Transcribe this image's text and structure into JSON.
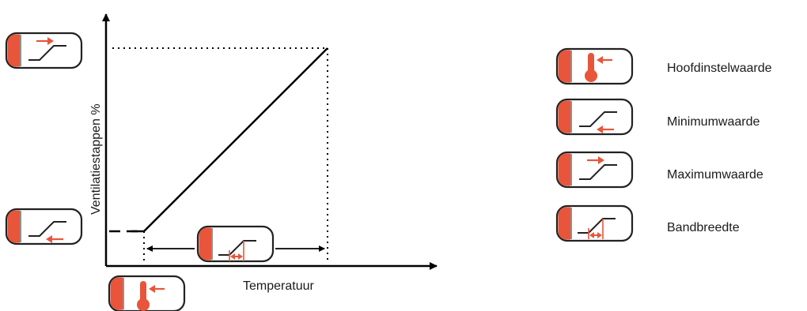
{
  "chart": {
    "x_axis_label": "Temperatuur",
    "y_axis_label": "Ventilatiestappen %"
  },
  "legend": [
    {
      "icon": "thermometer-setpoint-icon",
      "label": "Hoofdinstelwaarde"
    },
    {
      "icon": "minimum-ramp-icon",
      "label": "Minimumwaarde"
    },
    {
      "icon": "maximum-ramp-icon",
      "label": "Maximumwaarde"
    },
    {
      "icon": "bandwidth-ramp-icon",
      "label": "Bandbreedte"
    }
  ],
  "colors": {
    "accent": "#e8553a",
    "icon_border": "#222222",
    "line": "#000000",
    "text": "#1a1a1a"
  }
}
